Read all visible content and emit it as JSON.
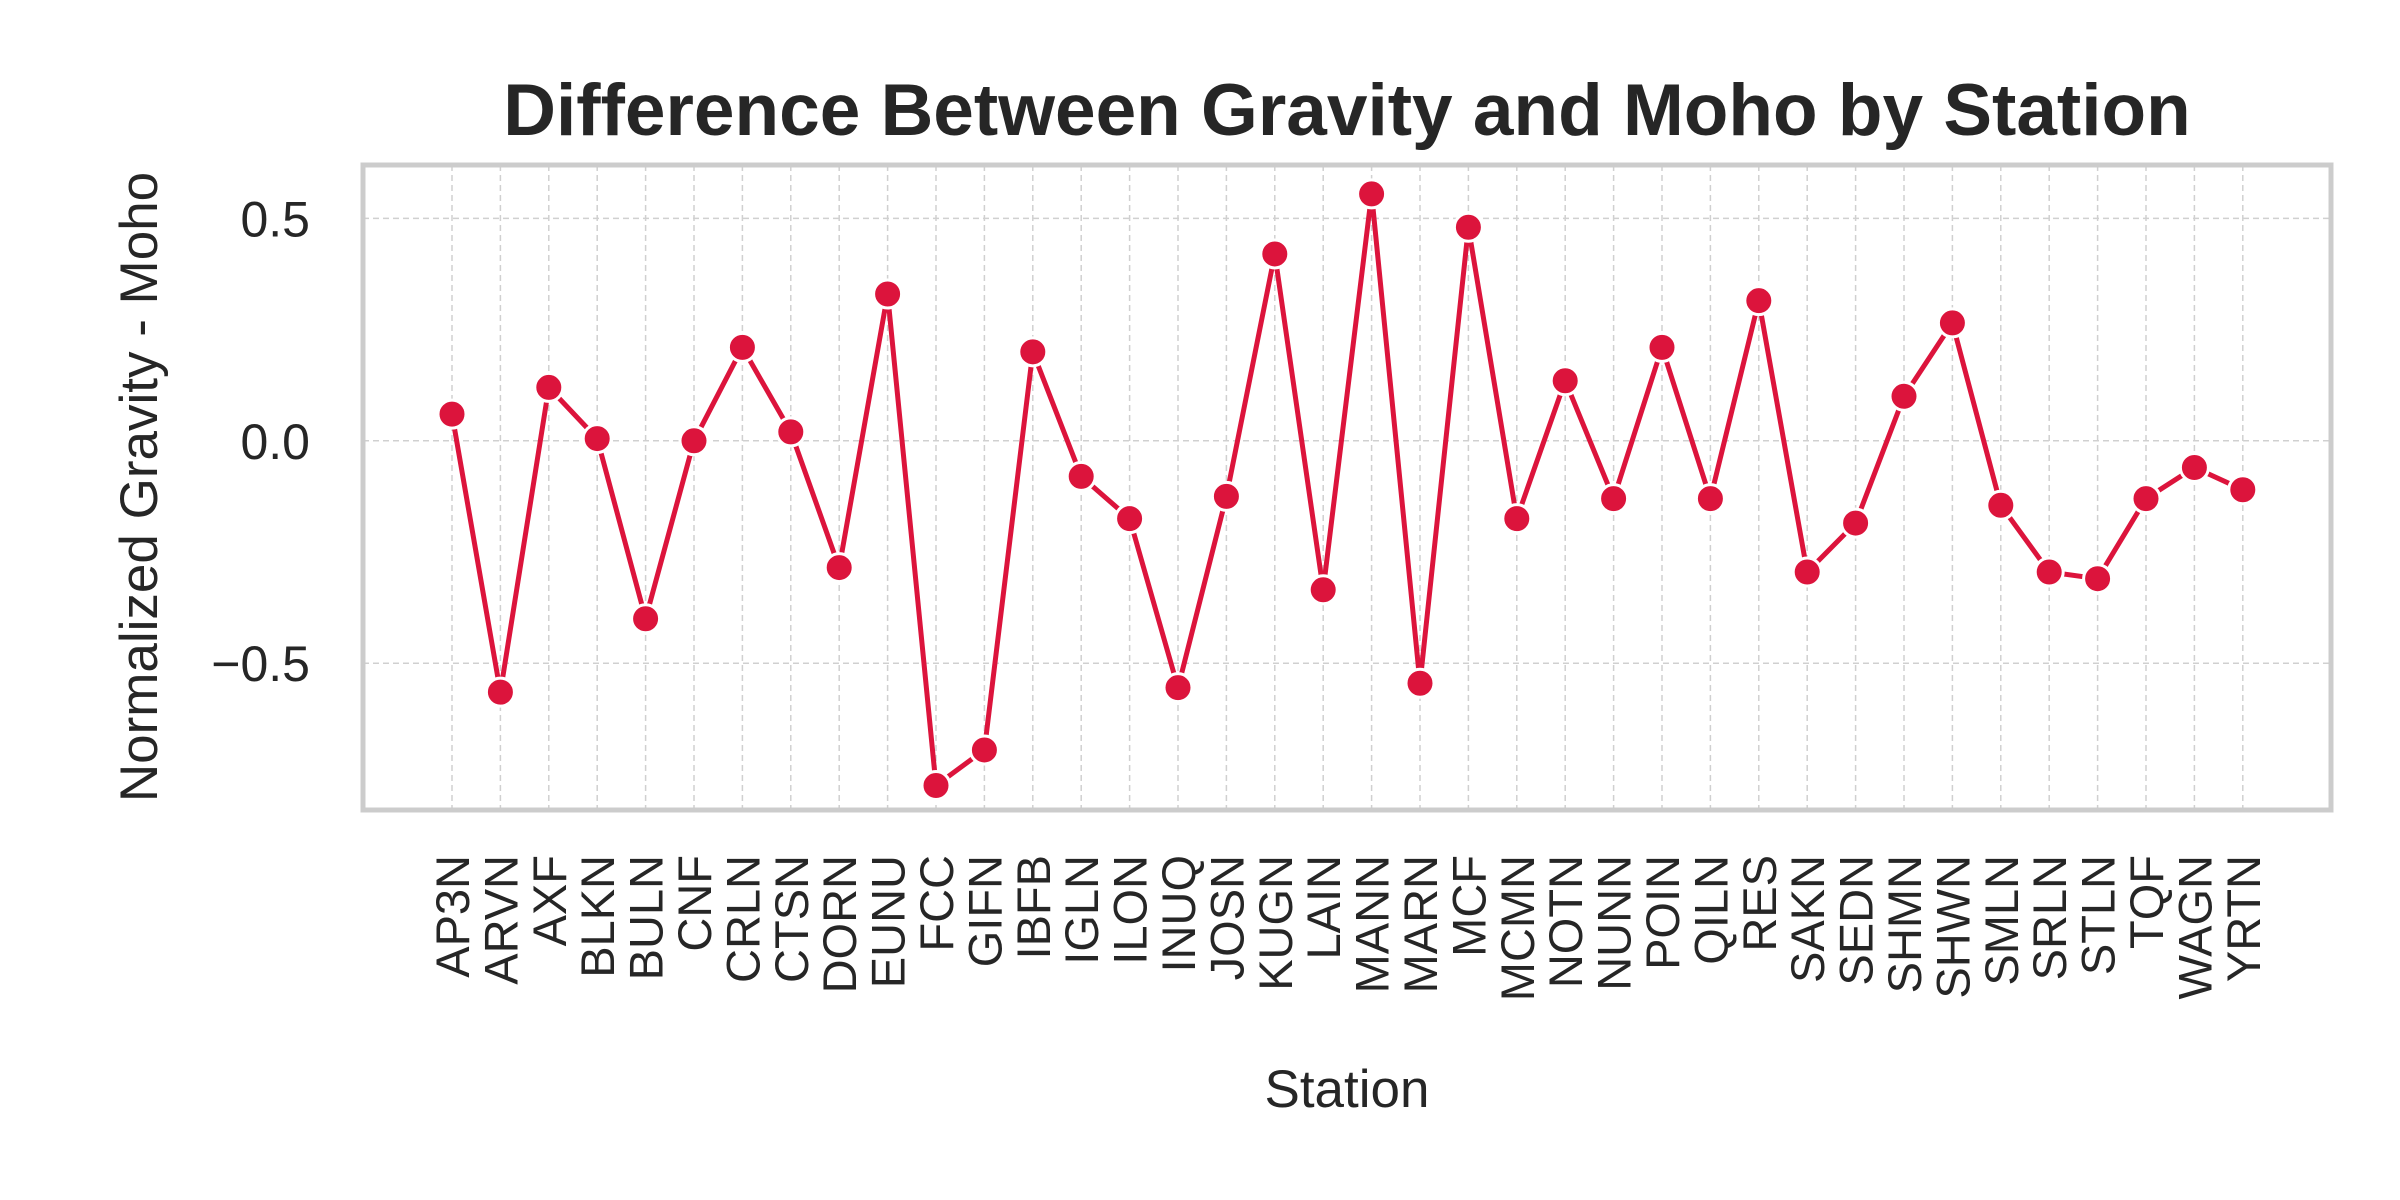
{
  "chart_data": {
    "type": "line",
    "title": "Difference Between Gravity and Moho by Station",
    "xlabel": "Station",
    "ylabel": "Normalized Gravity - Moho",
    "categories": [
      "AP3N",
      "ARVN",
      "AXF",
      "BLKN",
      "BULN",
      "CNF",
      "CRLN",
      "CTSN",
      "DORN",
      "EUNU",
      "FCC",
      "GIFN",
      "IBFB",
      "IGLN",
      "ILON",
      "INUQ",
      "JOSN",
      "KUGN",
      "LAIN",
      "MANN",
      "MARN",
      "MCF",
      "MCMN",
      "NOTN",
      "NUNN",
      "POIN",
      "QILN",
      "RES",
      "SAKN",
      "SEDN",
      "SHMN",
      "SHWN",
      "SMLN",
      "SRLN",
      "STLN",
      "TQF",
      "WAGN",
      "YRTN"
    ],
    "series": [
      {
        "values": [
          0.06,
          -0.565,
          0.12,
          0.005,
          -0.4,
          0.0,
          0.21,
          0.02,
          -0.285,
          0.33,
          -0.775,
          -0.695,
          0.2,
          -0.08,
          -0.175,
          -0.555,
          -0.125,
          0.42,
          -0.335,
          0.555,
          -0.545,
          0.48,
          -0.175,
          0.135,
          -0.13,
          0.21,
          -0.13,
          0.315,
          -0.295,
          -0.185,
          0.1,
          0.265,
          -0.145,
          -0.295,
          -0.31,
          -0.13,
          -0.06,
          -0.11
        ],
        "color": "#dc143c"
      }
    ],
    "yticks": [
      -0.5,
      0.0,
      0.5
    ],
    "ytick_labels": [
      "−0.5",
      "0.0",
      "0.5"
    ],
    "ylim": [
      -0.83,
      0.62
    ],
    "grid": true,
    "grid_style": "dashed",
    "legend": "none"
  }
}
